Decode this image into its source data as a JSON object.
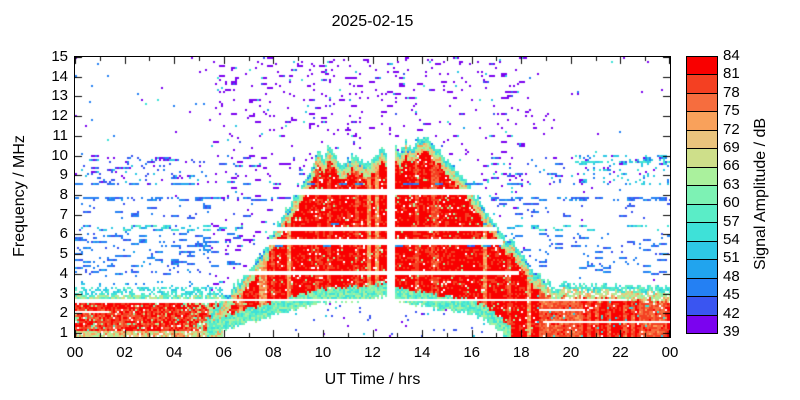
{
  "chart_data": {
    "type": "heatmap",
    "title": "2025-02-15",
    "xlabel": "UT Time / hrs",
    "ylabel": "Frequency / MHz",
    "x_range_hrs": [
      0,
      24
    ],
    "y_range_mhz": [
      0.8,
      15
    ],
    "x_ticks": [
      {
        "v": 0,
        "label": "00"
      },
      {
        "v": 2,
        "label": "02"
      },
      {
        "v": 4,
        "label": "04"
      },
      {
        "v": 6,
        "label": "06"
      },
      {
        "v": 8,
        "label": "08"
      },
      {
        "v": 10,
        "label": "10"
      },
      {
        "v": 12,
        "label": "12"
      },
      {
        "v": 14,
        "label": "14"
      },
      {
        "v": 16,
        "label": "16"
      },
      {
        "v": 18,
        "label": "18"
      },
      {
        "v": 20,
        "label": "20"
      },
      {
        "v": 22,
        "label": "22"
      },
      {
        "v": 24,
        "label": "00"
      }
    ],
    "x_minor_every_hrs": 1,
    "y_ticks": [
      {
        "v": 1,
        "label": "1"
      },
      {
        "v": 2,
        "label": "2"
      },
      {
        "v": 3,
        "label": "3"
      },
      {
        "v": 4,
        "label": "4"
      },
      {
        "v": 5,
        "label": "5"
      },
      {
        "v": 6,
        "label": "6"
      },
      {
        "v": 7,
        "label": "7"
      },
      {
        "v": 8,
        "label": "8"
      },
      {
        "v": 9,
        "label": "9"
      },
      {
        "v": 10,
        "label": "10"
      },
      {
        "v": 11,
        "label": "11"
      },
      {
        "v": 12,
        "label": "12"
      },
      {
        "v": 13,
        "label": "13"
      },
      {
        "v": 14,
        "label": "14"
      },
      {
        "v": 15,
        "label": "15"
      }
    ],
    "colorbar": {
      "label": "Signal Amplitude / dB",
      "min_db": 39,
      "max_db": 84,
      "step_db": 3,
      "tick_labels": [
        "39",
        "42",
        "45",
        "48",
        "51",
        "54",
        "57",
        "60",
        "63",
        "66",
        "69",
        "72",
        "75",
        "78",
        "81",
        "84"
      ],
      "palette_low_to_high": [
        "#7b03ef",
        "#3a55f1",
        "#2480f3",
        "#21a4ee",
        "#2ec8e5",
        "#3ee1d8",
        "#5aedc7",
        "#7df2b4",
        "#aaf19d",
        "#cedf8a",
        "#eac47d",
        "#f9a15b",
        "#f66d3e",
        "#f44022",
        "#f90000"
      ]
    },
    "features": {
      "daytime_echo": {
        "envelope_t_hrs": [
          5.3,
          5.8,
          6.3,
          6.8,
          7.3,
          7.8,
          8.2,
          8.6,
          9.0,
          9.4,
          9.7,
          9.9,
          10.05,
          10.25,
          10.45,
          10.65,
          10.9,
          11.2,
          11.5,
          11.8,
          12.1,
          12.35,
          12.7,
          12.9,
          13.1,
          13.35,
          13.6,
          13.85,
          14.1,
          14.35,
          14.6,
          14.9,
          15.2,
          15.5,
          15.9,
          16.3,
          16.7,
          17.1,
          17.5,
          17.8,
          18.1,
          18.5,
          18.9,
          19.4,
          20.2,
          21.5,
          23.0,
          24.0
        ],
        "envelope_fmax_mhz": [
          1.6,
          2.4,
          3.2,
          3.9,
          4.6,
          5.6,
          6.6,
          7.4,
          8.1,
          8.9,
          9.9,
          10.35,
          9.9,
          10.5,
          10.2,
          9.7,
          9.6,
          10.05,
          9.8,
          9.55,
          9.9,
          10.3,
          10.35,
          10.45,
          10.2,
          10.75,
          10.4,
          10.85,
          11.0,
          10.7,
          10.35,
          10.0,
          9.5,
          9.0,
          8.5,
          7.7,
          6.9,
          6.2,
          5.7,
          5.45,
          4.8,
          4.1,
          3.7,
          3.45,
          3.5,
          3.45,
          3.4,
          3.35
        ],
        "lower_t_hrs": [
          5.3,
          6.0,
          7.0,
          8.0,
          9.0,
          10.0,
          11.0,
          12.0,
          12.6,
          13.0,
          14.0,
          15.0,
          16.0,
          16.6,
          17.0,
          17.4,
          17.8,
          18.2,
          24.0
        ],
        "lower_fmin_mhz": [
          1.2,
          1.5,
          1.85,
          2.25,
          2.6,
          2.9,
          3.0,
          3.05,
          3.3,
          3.0,
          2.75,
          2.55,
          2.3,
          2.0,
          1.6,
          1.2,
          1.0,
          0.92,
          0.9
        ],
        "core_db": 83,
        "midzone_db": 68,
        "top_fringe_db": 57,
        "bottom_fringe_db": 60,
        "dropout_gap_t_hrs": [
          12.55,
          12.88
        ]
      },
      "night_band_left": {
        "t_hrs": [
          0,
          5.95
        ],
        "red_core_f_mhz": [
          1.15,
          2.55
        ],
        "core_db": 80,
        "mottle_f_mhz": [
          0.8,
          1.15
        ],
        "green_f_mhz": [
          2.55,
          2.9
        ],
        "cyan_band_f_mhz": [
          2.9,
          3.38
        ],
        "cyan_db": 55
      },
      "night_band_right": {
        "t_hrs": [
          16.6,
          24
        ],
        "core_db": 78,
        "top_f_mhz": 3.4
      },
      "white_lines_f_t": [
        [
          7.96,
          8.3,
          8.2,
          16.45
        ],
        [
          6.14,
          6.38,
          7.3,
          17.0
        ],
        [
          5.5,
          5.73,
          7.3,
          17.25
        ],
        [
          3.96,
          4.12,
          6.6,
          17.9
        ],
        [
          2.55,
          2.68,
          0,
          5.6
        ],
        [
          2.6,
          2.76,
          5.6,
          22.3
        ],
        [
          2.13,
          2.22,
          18.8,
          20.6
        ],
        [
          1.97,
          2.1,
          0,
          1.35
        ],
        [
          1.5,
          1.63,
          18.9,
          24
        ]
      ],
      "rfi_rows_over_echo": [
        {
          "f": [
            8.5,
            8.66
          ],
          "t": [
            0,
            24
          ],
          "p": 0.26,
          "db": 47,
          "jit": 3
        },
        {
          "f": [
            6.44,
            6.6
          ],
          "t": [
            8,
            16.6
          ],
          "p": 0.15,
          "db": 48,
          "jit": 3
        },
        {
          "f": [
            5.33,
            5.47
          ],
          "t": [
            7.5,
            17.2
          ],
          "p": 0.17,
          "db": 47,
          "jit": 3
        }
      ],
      "rfi_bands": [
        {
          "f": [
            9.6,
            9.76
          ],
          "t": [
            20.4,
            24
          ],
          "p": 0.6,
          "db": 55,
          "jit": 3
        },
        {
          "f": [
            7.7,
            7.9
          ],
          "t": [
            0,
            24
          ],
          "p": 0.28,
          "db": 46.5,
          "jit": 2.5
        },
        {
          "f": [
            6.18,
            6.44
          ],
          "t": [
            0,
            7.4
          ],
          "p": 0.26,
          "db": 54,
          "jit": 5
        },
        {
          "f": [
            6.18,
            6.44
          ],
          "t": [
            17,
            24
          ],
          "p": 0.1,
          "db": 54,
          "jit": 5
        },
        {
          "f": [
            6.8,
            7.6
          ],
          "t": [
            0,
            7.2
          ],
          "p": 0.05,
          "db": 45,
          "jit": 3
        },
        {
          "f": [
            6.8,
            7.6
          ],
          "t": [
            17,
            24
          ],
          "p": 0.05,
          "db": 45,
          "jit": 3
        },
        {
          "f": [
            3.9,
            6.12
          ],
          "t": [
            0,
            6.7
          ],
          "p": 0.13,
          "db": 46,
          "jit": 2.5
        },
        {
          "f": [
            3.9,
            6.12
          ],
          "t": [
            17.2,
            24
          ],
          "p": 0.08,
          "db": 46,
          "jit": 2.5
        }
      ],
      "scatter_8_to_10_mhz": {
        "f": [
          8.55,
          10.05
        ],
        "p_by_t": [
          [
            0,
            4.3,
            0.17
          ],
          [
            4.3,
            6.5,
            0.1
          ],
          [
            6.5,
            16.5,
            0.05
          ],
          [
            16.5,
            20,
            0.08
          ],
          [
            20,
            24,
            0.16
          ]
        ]
      },
      "sporadic_dots_above_echo": {
        "t": [
          5.5,
          18.25
        ],
        "offset_mhz": 0.35,
        "p": 0.06,
        "db": 40
      },
      "sporadic_tails": [
        {
          "t": [
            4.5,
            5.5
          ],
          "f": [
            13,
            15
          ],
          "p": 0.035,
          "db": 40
        },
        {
          "t": [
            18.25,
            19.4
          ],
          "f": [
            10.8,
            13
          ],
          "p": 0.05,
          "db": 40.5
        }
      ],
      "dots_below_echo": {
        "t": [
          8.6,
          16.6
        ],
        "f": [
          0.85,
          2.7
        ],
        "p": 0.028
      },
      "stray_dot_p": 0.0045
    }
  }
}
